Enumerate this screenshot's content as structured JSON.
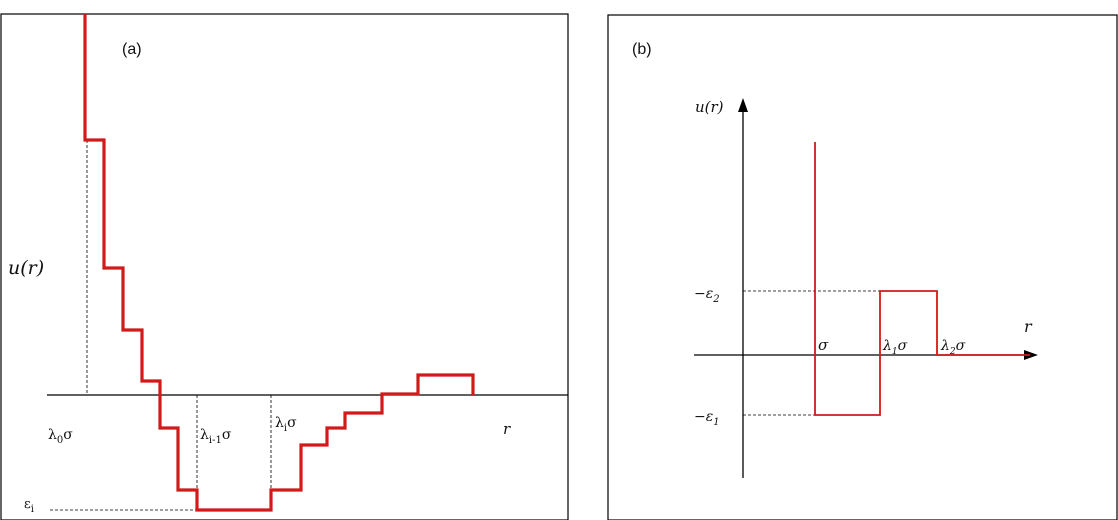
{
  "panel_a": {
    "tag": "(a)",
    "ylabel": "u(r)",
    "xlabel": "r",
    "labels": {
      "lambda0": {
        "main": "λ",
        "sub": "0",
        "tail": "σ"
      },
      "lambda_i1": {
        "main": "λ",
        "sub": "i-1",
        "tail": "σ"
      },
      "lambda_i": {
        "main": "λ",
        "sub": "i",
        "tail": "σ"
      },
      "eps_i": {
        "main": "ε",
        "sub": "i"
      }
    },
    "line_color": "#d11a1a"
  },
  "panel_b": {
    "tag": "(b)",
    "ylabel": "u(r)",
    "xlabel": "r",
    "labels": {
      "sigma": "σ",
      "lambda1": {
        "main": "λ",
        "sub": "1",
        "tail": "σ"
      },
      "lambda2": {
        "main": "λ",
        "sub": "2",
        "tail": "σ"
      },
      "eps2": {
        "prefix": "−ε",
        "sub": "2"
      },
      "eps1": {
        "prefix": "−ε",
        "sub": "1"
      }
    },
    "line_color": "#d11a1a"
  }
}
